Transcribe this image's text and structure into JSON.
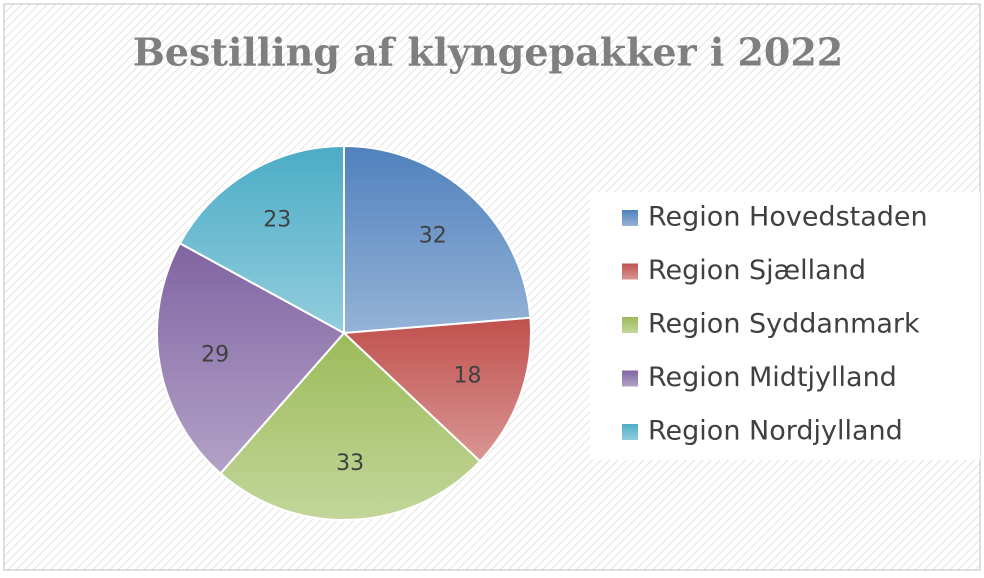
{
  "chart_data": {
    "type": "pie",
    "title": "Bestilling af klyngepakker i 2022",
    "categories": [
      "Region Hovedstaden",
      "Region Sjælland",
      "Region Syddanmark",
      "Region Midtjylland",
      "Region Nordjylland"
    ],
    "values": [
      32,
      18,
      33,
      29,
      23
    ],
    "colors": [
      "#4f81bd",
      "#c0504d",
      "#9bbb59",
      "#8064a2",
      "#4bacc6"
    ],
    "legend": "right"
  }
}
